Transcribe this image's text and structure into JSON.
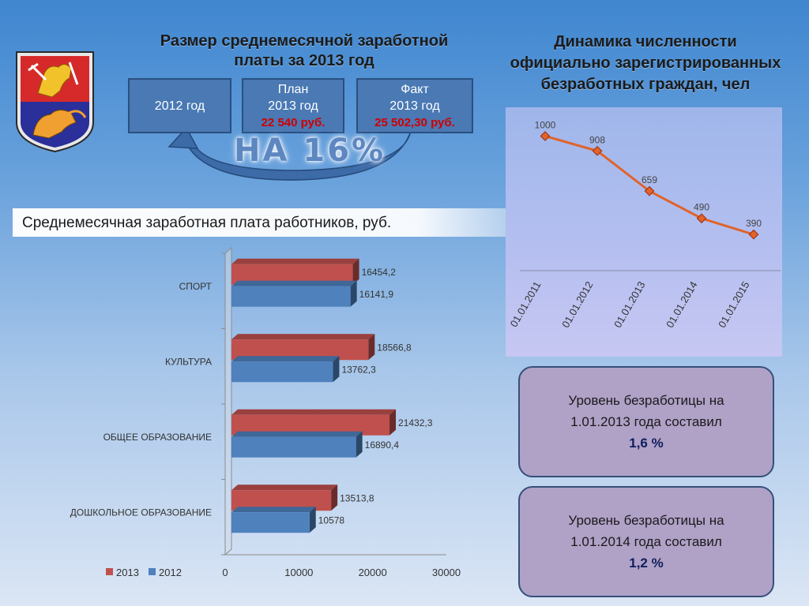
{
  "header": {
    "left_title_line1": "Размер среднемесячной заработной",
    "left_title_line2": "платы за 2013 год",
    "right_title_line1": "Динамика численности",
    "right_title_line2": "официально зарегистрированных",
    "right_title_line3": "безработных граждан, чел"
  },
  "boxes": {
    "year_2012": "2012 год",
    "plan_label": "План",
    "plan_year": "2013 год",
    "plan_value": "22 540 руб.",
    "fact_label": "Факт",
    "fact_year": "2013 год",
    "fact_value": "25 502,30 руб."
  },
  "increase_label": "НА 16%",
  "section_title": "Среднемесячная заработная плата работников, руб.",
  "info_cards": [
    {
      "line1": "Уровень безработицы на",
      "line2": "1.01.2013 года составил",
      "value": "1,6 %"
    },
    {
      "line1": "Уровень безработицы на",
      "line2": "1.01.2014 года составил",
      "value": "1,2 %"
    }
  ],
  "colors": {
    "series_2013": "#c0504d",
    "series_2012": "#4f81bd",
    "line": "#e0632b",
    "box_fill": "#4a79b4",
    "accent_red": "#d00000"
  },
  "chart_data": [
    {
      "type": "bar",
      "orientation": "horizontal",
      "categories": [
        "СПОРТ",
        "КУЛЬТУРА",
        "ОБЩЕЕ ОБРАЗОВАНИЕ",
        "ДОШКОЛЬНОЕ ОБРАЗОВАНИЕ"
      ],
      "series": [
        {
          "name": "2013",
          "values": [
            16454.2,
            18566.8,
            21432.3,
            13513.8
          ],
          "labels": [
            "16454,2",
            "18566,8",
            "21432,3",
            "13513,8"
          ]
        },
        {
          "name": "2012",
          "values": [
            16141.9,
            13762.3,
            16890.4,
            10578
          ],
          "labels": [
            "16141,9",
            "13762,3",
            "16890,4",
            "10578"
          ]
        }
      ],
      "xlim": [
        0,
        30000
      ],
      "xticks": [
        "0",
        "10000",
        "20000",
        "30000"
      ],
      "legend_position": "bottom-left",
      "grid": false,
      "style": "3d"
    },
    {
      "type": "line",
      "categories": [
        "01.01.2011",
        "01.01.2012",
        "01.01.2013",
        "01.01.2014",
        "01.01.2015"
      ],
      "values": [
        1000,
        908,
        659,
        490,
        390
      ],
      "labels": [
        "1000",
        "908",
        "659",
        "490",
        "390"
      ],
      "grid": false,
      "legend": "none"
    }
  ]
}
